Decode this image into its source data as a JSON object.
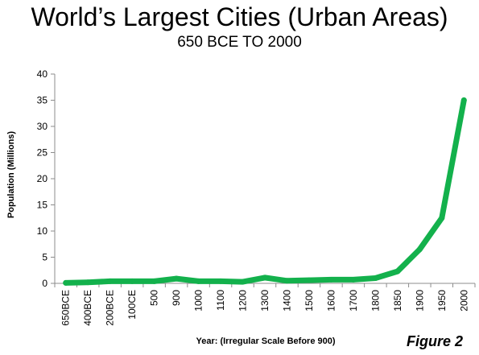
{
  "chart_data": {
    "type": "line",
    "title": "World’s Largest Cities (Urban Areas)",
    "subtitle": "650 BCE TO 2000",
    "xlabel": "Year: (Irregular Scale Before 900)",
    "ylabel": "Population (Millions)",
    "ylim": [
      0,
      40
    ],
    "yticks": [
      0,
      5,
      10,
      15,
      20,
      25,
      30,
      35,
      40
    ],
    "grid": false,
    "legend": "none",
    "line_color": "#13b14c",
    "categories": [
      "650BCE",
      "400BCE",
      "200BCE",
      "100CE",
      "500",
      "900",
      "1000",
      "1100",
      "1200",
      "1300",
      "1400",
      "1500",
      "1600",
      "1700",
      "1800",
      "1850",
      "1900",
      "1950",
      "2000"
    ],
    "series": [
      {
        "values": [
          0.1,
          0.2,
          0.4,
          0.4,
          0.4,
          0.9,
          0.4,
          0.4,
          0.3,
          1.1,
          0.5,
          0.6,
          0.7,
          0.7,
          1.0,
          2.3,
          6.5,
          12.5,
          35.0
        ]
      }
    ]
  },
  "figure_label": "Figure 2"
}
